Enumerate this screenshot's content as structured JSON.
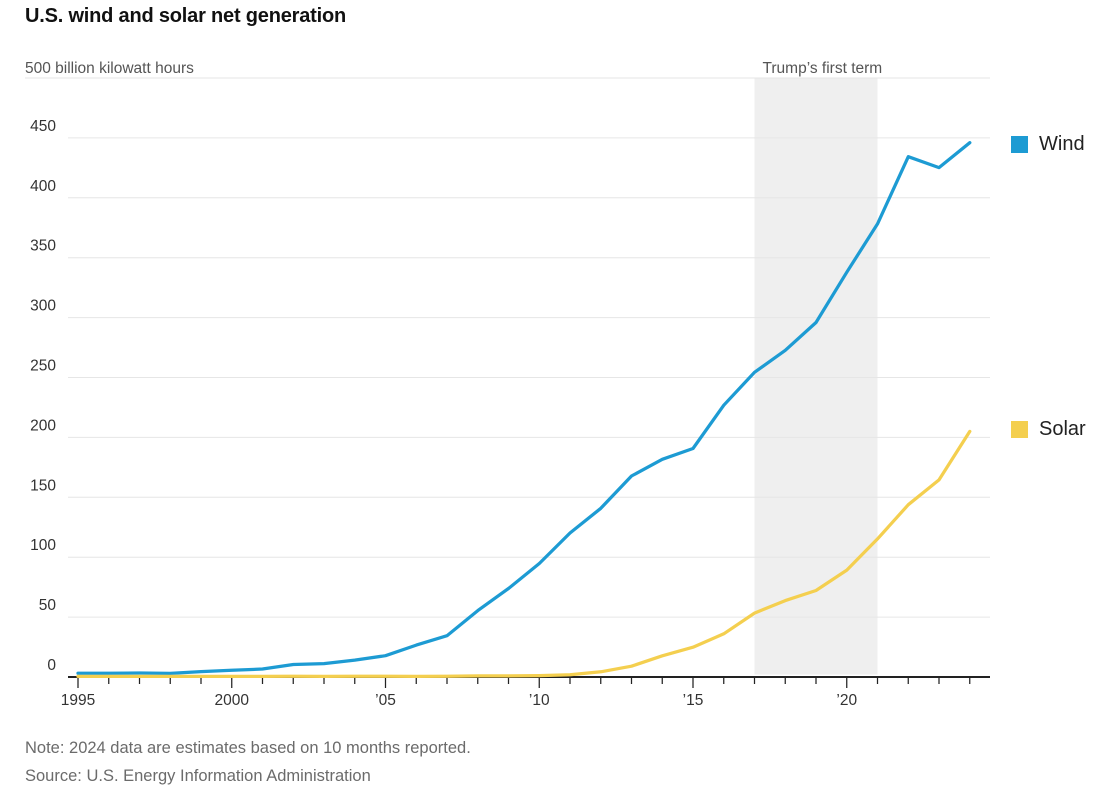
{
  "chart_data": {
    "type": "line",
    "title": "U.S. wind and solar net generation",
    "unit_label": "500 billion kilowatt hours",
    "x": [
      1995,
      1996,
      1997,
      1998,
      1999,
      2000,
      2001,
      2002,
      2003,
      2004,
      2005,
      2006,
      2007,
      2008,
      2009,
      2010,
      2011,
      2012,
      2013,
      2014,
      2015,
      2016,
      2017,
      2018,
      2019,
      2020,
      2021,
      2022,
      2023,
      2024
    ],
    "series": [
      {
        "name": "Wind",
        "color": "#1d9bd3",
        "values": [
          3.2,
          3.2,
          3.3,
          3.0,
          4.5,
          5.6,
          6.7,
          10.4,
          11.2,
          14.1,
          17.8,
          26.6,
          34.5,
          55.4,
          73.9,
          94.7,
          120.2,
          140.8,
          167.8,
          181.7,
          190.7,
          226.9,
          254.3,
          272.7,
          295.9,
          337.9,
          378.2,
          434.3,
          425.2,
          446.0
        ]
      },
      {
        "name": "Solar",
        "color": "#f4cf4f",
        "values": [
          0.5,
          0.5,
          0.5,
          0.5,
          0.5,
          0.5,
          0.5,
          0.6,
          0.5,
          0.6,
          0.6,
          0.5,
          0.6,
          0.9,
          0.9,
          1.2,
          1.8,
          4.3,
          9.0,
          17.7,
          24.9,
          36.1,
          53.3,
          63.8,
          72.2,
          89.2,
          115.3,
          143.8,
          164.5,
          205.0
        ]
      }
    ],
    "annotation": {
      "label": "Trump’s first term",
      "x_start": 2017,
      "x_end": 2021,
      "fill": "#efefef"
    },
    "y_axis": {
      "min": 0,
      "max": 500,
      "step": 50,
      "tick_labels": [
        "0",
        "50",
        "100",
        "150",
        "200",
        "250",
        "300",
        "350",
        "400",
        "450"
      ]
    },
    "x_axis": {
      "labeled_ticks": [
        {
          "year": 1995,
          "label": "1995"
        },
        {
          "year": 2000,
          "label": "2000"
        },
        {
          "year": 2005,
          "label": "’05"
        },
        {
          "year": 2010,
          "label": "’10"
        },
        {
          "year": 2015,
          "label": "’15"
        },
        {
          "year": 2020,
          "label": "’20"
        }
      ]
    },
    "grid": true,
    "legend_position": "right",
    "colors": {
      "grid": "#e6e6e6",
      "axis": "#222222",
      "note_text": "#6b6b6b",
      "background": "#ffffff"
    }
  },
  "legend": [
    {
      "label": "Wind",
      "color": "#1d9bd3"
    },
    {
      "label": "Solar",
      "color": "#f4cf4f"
    }
  ],
  "notes": {
    "note_line": "Note: 2024 data are estimates based on 10 months reported.",
    "source_line": "Source: U.S. Energy Information Administration"
  }
}
